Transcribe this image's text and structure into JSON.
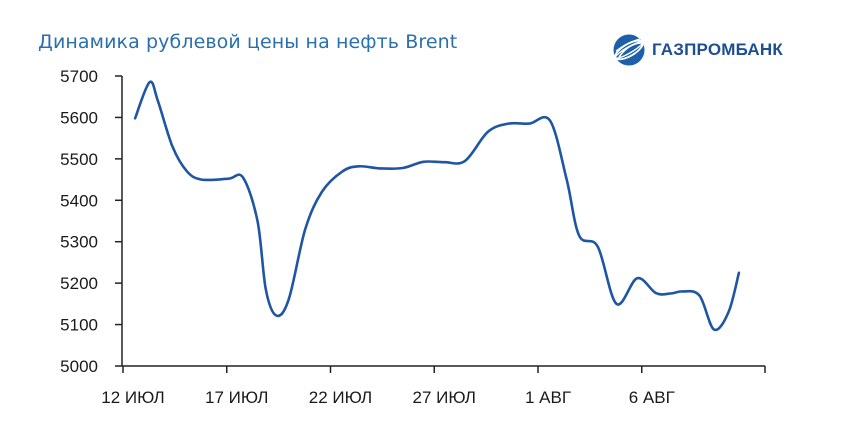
{
  "title": "Динамика рублевой цены на нефть Brent",
  "logo": {
    "text": "ГАЗПРОМБАНК",
    "icon": "gazprombank-sphere-icon"
  },
  "colors": {
    "line": "#1f56a3",
    "title": "#2a6fae",
    "axis": "#222222"
  },
  "chart_data": {
    "type": "line",
    "title": "Динамика рублевой цены на нефть Brent",
    "xlabel": "",
    "ylabel": "",
    "ylim": [
      5000,
      5700
    ],
    "y_ticks": [
      5000,
      5100,
      5200,
      5300,
      5400,
      5500,
      5600,
      5700
    ],
    "x_ticks": [
      {
        "x": 0,
        "label": "12 ИЮЛ"
      },
      {
        "x": 5,
        "label": "17 ИЮЛ"
      },
      {
        "x": 10,
        "label": "22 ИЮЛ"
      },
      {
        "x": 15,
        "label": "27 ИЮЛ"
      },
      {
        "x": 20,
        "label": "1 АВГ"
      },
      {
        "x": 25,
        "label": "6 АВГ"
      }
    ],
    "xlim": [
      -0.5,
      30
    ],
    "grid": false,
    "series": [
      {
        "values": [
          [
            0.1,
            5598
          ],
          [
            0.8,
            5685
          ],
          [
            1.2,
            5640
          ],
          [
            1.9,
            5530
          ],
          [
            2.6,
            5470
          ],
          [
            3.3,
            5450
          ],
          [
            4.6,
            5452
          ],
          [
            5.3,
            5455
          ],
          [
            6.0,
            5350
          ],
          [
            6.4,
            5185
          ],
          [
            6.9,
            5122
          ],
          [
            7.5,
            5160
          ],
          [
            8.3,
            5330
          ],
          [
            9.1,
            5420
          ],
          [
            10.1,
            5470
          ],
          [
            10.9,
            5482
          ],
          [
            11.9,
            5477
          ],
          [
            13.0,
            5478
          ],
          [
            14.0,
            5493
          ],
          [
            15.0,
            5492
          ],
          [
            16.0,
            5495
          ],
          [
            17.1,
            5565
          ],
          [
            18.1,
            5585
          ],
          [
            19.1,
            5585
          ],
          [
            20.1,
            5592
          ],
          [
            20.9,
            5450
          ],
          [
            21.5,
            5315
          ],
          [
            22.4,
            5288
          ],
          [
            23.3,
            5150
          ],
          [
            24.3,
            5212
          ],
          [
            25.2,
            5176
          ],
          [
            25.9,
            5175
          ],
          [
            26.5,
            5180
          ],
          [
            27.3,
            5170
          ],
          [
            28.0,
            5088
          ],
          [
            28.7,
            5130
          ],
          [
            29.2,
            5225
          ]
        ]
      }
    ]
  }
}
